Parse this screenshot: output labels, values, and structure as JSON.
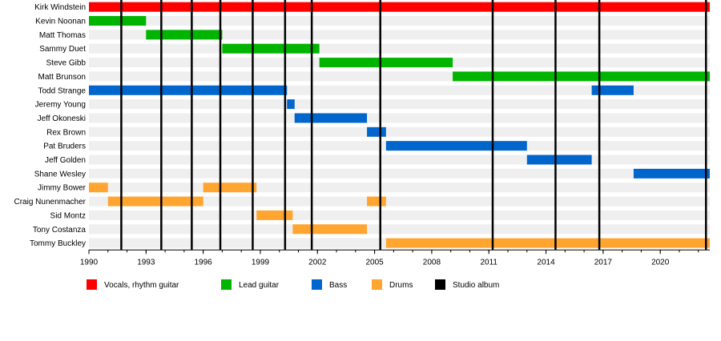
{
  "chart_data": {
    "type": "timeline",
    "xlim": [
      1990,
      2022.6
    ],
    "x_ticks": [
      "1990",
      "1993",
      "1996",
      "1999",
      "2002",
      "2005",
      "2008",
      "2011",
      "2014",
      "2017",
      "2020"
    ],
    "members": [
      "Kirk Windstein",
      "Kevin Noonan",
      "Matt Thomas",
      "Sammy Duet",
      "Steve Gibb",
      "Matt Brunson",
      "Todd Strange",
      "Jeremy Young",
      "Jeff Okoneski",
      "Rex Brown",
      "Pat Bruders",
      "Jeff Golden",
      "Shane Wesley",
      "Jimmy Bower",
      "Craig Nunenmacher",
      "Sid Montz",
      "Tony Costanza",
      "Tommy Buckley"
    ],
    "roles": [
      {
        "name": "Vocals, rhythm guitar",
        "color": "#ff0000"
      },
      {
        "name": "Lead guitar",
        "color": "#00b400"
      },
      {
        "name": "Bass",
        "color": "#0066cc"
      },
      {
        "name": "Drums",
        "color": "#ffa530"
      },
      {
        "name": "Studio album",
        "color": "#000000"
      }
    ],
    "bars": [
      {
        "member": "Kirk Windstein",
        "role": "Vocals, rhythm guitar",
        "start": 1990.0,
        "end": 2022.6
      },
      {
        "member": "Kevin Noonan",
        "role": "Lead guitar",
        "start": 1990.0,
        "end": 1993.0
      },
      {
        "member": "Matt Thomas",
        "role": "Lead guitar",
        "start": 1993.0,
        "end": 1997.0
      },
      {
        "member": "Sammy Duet",
        "role": "Lead guitar",
        "start": 1997.0,
        "end": 2002.1
      },
      {
        "member": "Steve Gibb",
        "role": "Lead guitar",
        "start": 2002.1,
        "end": 2009.1
      },
      {
        "member": "Matt Brunson",
        "role": "Lead guitar",
        "start": 2009.1,
        "end": 2022.6
      },
      {
        "member": "Todd Strange",
        "role": "Bass",
        "start": 1990.0,
        "end": 2000.4
      },
      {
        "member": "Todd Strange",
        "role": "Bass",
        "start": 2016.4,
        "end": 2018.6
      },
      {
        "member": "Jeremy Young",
        "role": "Bass",
        "start": 2000.4,
        "end": 2000.8
      },
      {
        "member": "Jeff Okoneski",
        "role": "Bass",
        "start": 2000.8,
        "end": 2004.6
      },
      {
        "member": "Rex Brown",
        "role": "Bass",
        "start": 2004.6,
        "end": 2005.6
      },
      {
        "member": "Pat Bruders",
        "role": "Bass",
        "start": 2005.6,
        "end": 2013.0
      },
      {
        "member": "Jeff Golden",
        "role": "Bass",
        "start": 2013.0,
        "end": 2016.4
      },
      {
        "member": "Shane Wesley",
        "role": "Bass",
        "start": 2018.6,
        "end": 2022.6
      },
      {
        "member": "Jimmy Bower",
        "role": "Drums",
        "start": 1990.0,
        "end": 1991.0
      },
      {
        "member": "Jimmy Bower",
        "role": "Drums",
        "start": 1996.0,
        "end": 1998.8
      },
      {
        "member": "Craig Nunenmacher",
        "role": "Drums",
        "start": 1991.0,
        "end": 1996.0
      },
      {
        "member": "Craig Nunenmacher",
        "role": "Drums",
        "start": 2004.6,
        "end": 2005.6
      },
      {
        "member": "Sid Montz",
        "role": "Drums",
        "start": 1998.8,
        "end": 2000.7
      },
      {
        "member": "Tony Costanza",
        "role": "Drums",
        "start": 2000.7,
        "end": 2004.6
      },
      {
        "member": "Tommy Buckley",
        "role": "Drums",
        "start": 2005.6,
        "end": 2022.6
      }
    ],
    "studio_albums": [
      1991.7,
      1993.8,
      1995.4,
      1996.9,
      1998.6,
      2000.3,
      2001.7,
      2005.3,
      2011.2,
      2014.5,
      2016.8,
      2022.4
    ]
  }
}
